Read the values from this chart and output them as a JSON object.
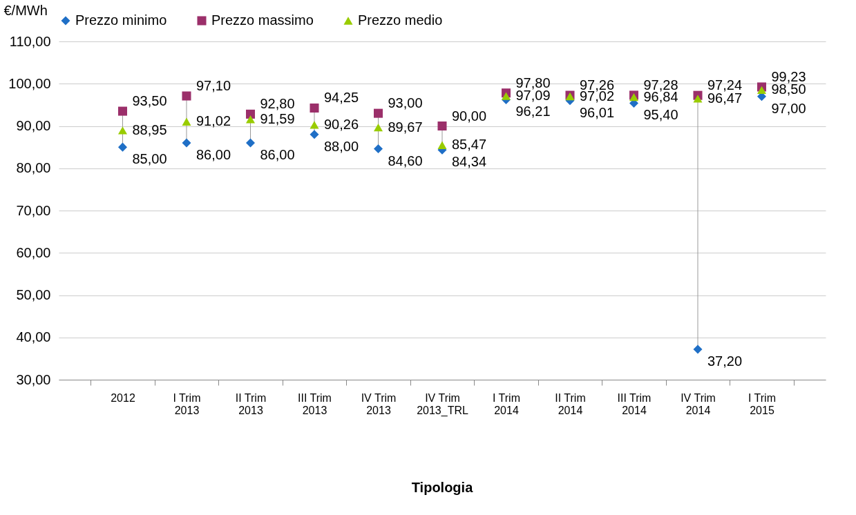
{
  "chart_data": {
    "type": "scatter",
    "ylabel": "€/MWh",
    "annotations": [
      "Tipologia"
    ],
    "categories": [
      "2012",
      "I Trim 2013",
      "II Trim 2013",
      "III Trim 2013",
      "IV Trim 2013",
      "IV Trim 2013_TRL",
      "I Trim 2014",
      "II Trim 2014",
      "III Trim 2014",
      "IV Trim 2014",
      "I Trim 2015"
    ],
    "series": [
      {
        "name": "Prezzo minimo",
        "color": "#1f6fc6",
        "marker": "diamond",
        "values": [
          85.0,
          86.0,
          86.0,
          88.0,
          84.6,
          84.34,
          96.21,
          96.01,
          95.4,
          37.2,
          97.0
        ],
        "value_labels": [
          "85,00",
          "86,00",
          "86,00",
          "88,00",
          "84,60",
          "84,34",
          "96,21",
          "96,01",
          "95,40",
          "37,20",
          "97,00"
        ]
      },
      {
        "name": "Prezzo massimo",
        "color": "#9b2f6a",
        "marker": "square",
        "values": [
          93.5,
          97.1,
          92.8,
          94.25,
          93.0,
          90.0,
          97.8,
          97.26,
          97.28,
          97.24,
          99.23
        ],
        "value_labels": [
          "93,50",
          "97,10",
          "92,80",
          "94,25",
          "93,00",
          "90,00",
          "97,80",
          "97,26",
          "97,28",
          "97,24",
          "99,23"
        ]
      },
      {
        "name": "Prezzo medio",
        "color": "#99cc00",
        "marker": "triangle",
        "values": [
          88.95,
          91.02,
          91.59,
          90.26,
          89.67,
          85.47,
          97.09,
          97.02,
          96.84,
          96.47,
          98.5
        ],
        "value_labels": [
          "88,95",
          "91,02",
          "91,59",
          "90,26",
          "89,67",
          "85,47",
          "97,09",
          "97,02",
          "96,84",
          "96,47",
          "98,50"
        ]
      }
    ],
    "ylim": [
      30,
      110
    ],
    "yticks": [
      {
        "value": 30,
        "label": "30,00"
      },
      {
        "value": 40,
        "label": "40,00"
      },
      {
        "value": 50,
        "label": "50,00"
      },
      {
        "value": 60,
        "label": "60,00"
      },
      {
        "value": 70,
        "label": "70,00"
      },
      {
        "value": 80,
        "label": "80,00"
      },
      {
        "value": 90,
        "label": "90,00"
      },
      {
        "value": 100,
        "label": "100,00"
      },
      {
        "value": 110,
        "label": "110,00"
      }
    ],
    "grid": "y",
    "legend": "top"
  }
}
